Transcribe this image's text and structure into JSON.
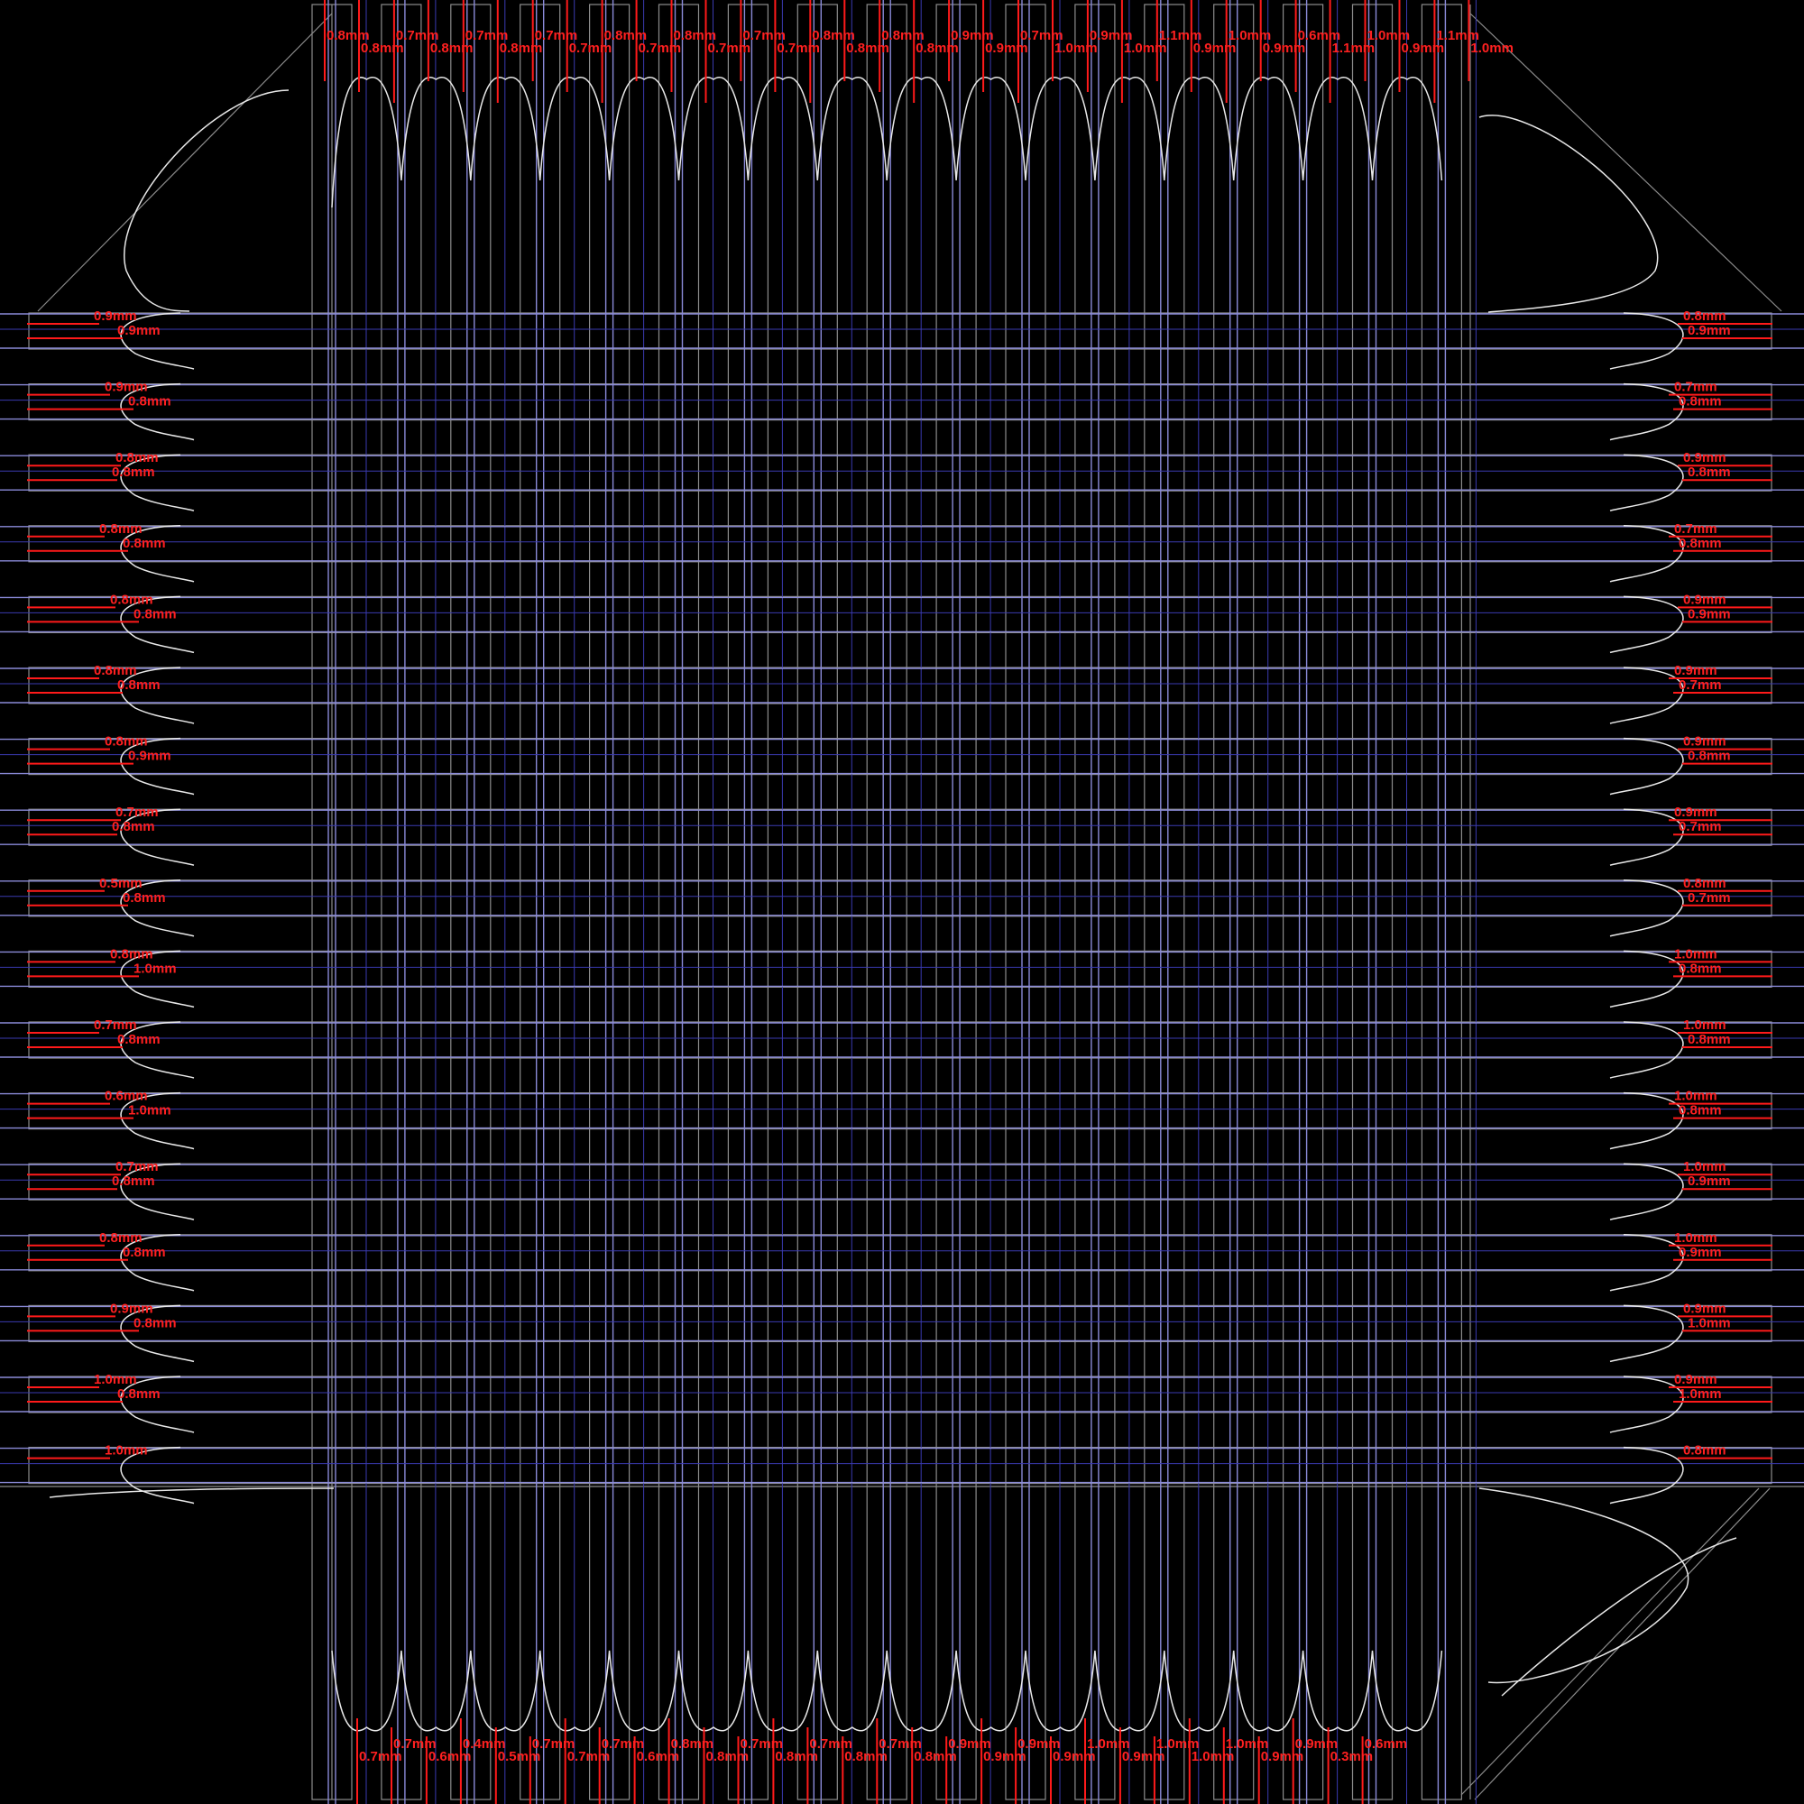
{
  "colors": {
    "background": "#000000",
    "measurement": "#ff1a1a",
    "outline": "#8c8c8c",
    "grid": "#8a8ad8",
    "grid_thin": "#3a3ab0",
    "profile": "#e8e8e8"
  },
  "top_labels": [
    "0.8mm",
    "0.8mm",
    "0.7mm",
    "0.8mm",
    "0.7mm",
    "0.8mm",
    "0.7mm",
    "0.7mm",
    "0.8mm",
    "0.7mm",
    "0.8mm",
    "0.7mm",
    "0.7mm",
    "0.7mm",
    "0.8mm",
    "0.8mm",
    "0.8mm",
    "0.8mm",
    "0.9mm",
    "0.9mm",
    "0.7mm",
    "1.0mm",
    "0.9mm",
    "1.0mm",
    "1.1mm",
    "0.9mm",
    "1.0mm",
    "0.9mm",
    "0.6mm",
    "1.1mm",
    "1.0mm",
    "0.9mm",
    "1.1mm",
    "1.0mm"
  ],
  "bottom_labels": [
    "0.7mm",
    "0.7mm",
    "0.6mm",
    "0.4mm",
    "0.5mm",
    "0.7mm",
    "0.7mm",
    "0.7mm",
    "0.6mm",
    "0.8mm",
    "0.8mm",
    "0.7mm",
    "0.8mm",
    "0.7mm",
    "0.8mm",
    "0.7mm",
    "0.8mm",
    "0.9mm",
    "0.9mm",
    "0.9mm",
    "0.9mm",
    "1.0mm",
    "0.9mm",
    "1.0mm",
    "1.0mm",
    "1.0mm",
    "0.9mm",
    "0.9mm",
    "0.3mm",
    "0.6mm"
  ],
  "left_labels": [
    "0.9mm",
    "0.9mm",
    "0.9mm",
    "0.8mm",
    "0.8mm",
    "0.8mm",
    "0.8mm",
    "0.8mm",
    "0.8mm",
    "0.8mm",
    "0.8mm",
    "0.8mm",
    "0.8mm",
    "0.9mm",
    "0.7mm",
    "0.8mm",
    "0.5mm",
    "0.8mm",
    "0.8mm",
    "1.0mm",
    "0.7mm",
    "0.8mm",
    "0.6mm",
    "1.0mm",
    "0.7mm",
    "0.8mm",
    "0.8mm",
    "0.8mm",
    "0.9mm",
    "0.8mm",
    "1.0mm",
    "0.8mm",
    "1.0mm"
  ],
  "right_labels": [
    "0.8mm",
    "0.9mm",
    "0.7mm",
    "0.8mm",
    "0.9mm",
    "0.8mm",
    "0.7mm",
    "0.8mm",
    "0.9mm",
    "0.9mm",
    "0.9mm",
    "0.7mm",
    "0.9mm",
    "0.8mm",
    "0.9mm",
    "0.7mm",
    "0.8mm",
    "0.7mm",
    "1.0mm",
    "0.8mm",
    "1.0mm",
    "0.8mm",
    "1.0mm",
    "0.8mm",
    "1.0mm",
    "0.9mm",
    "1.0mm",
    "0.9mm",
    "0.9mm",
    "1.0mm",
    "0.9mm",
    "1.0mm",
    "0.8mm"
  ]
}
